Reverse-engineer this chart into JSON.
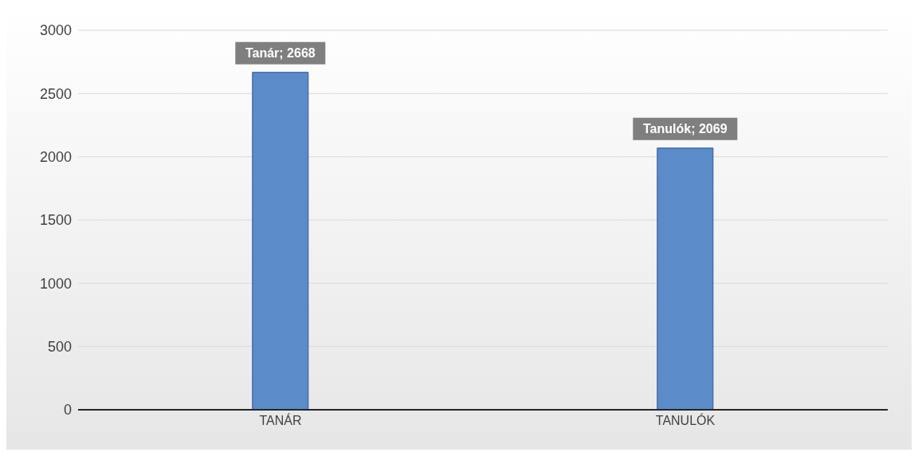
{
  "chart_data": {
    "type": "bar",
    "categories": [
      "TANÁR",
      "TANULÓK"
    ],
    "values": [
      2668,
      2069
    ],
    "color": "#5b8bc9",
    "value_labels": [
      "Tanár; 2668",
      "Tanulók; 2069"
    ],
    "ylim": [
      0,
      3000
    ],
    "yticks": [
      0,
      500,
      1000,
      1500,
      2000,
      2500,
      3000
    ],
    "grid": "y"
  }
}
